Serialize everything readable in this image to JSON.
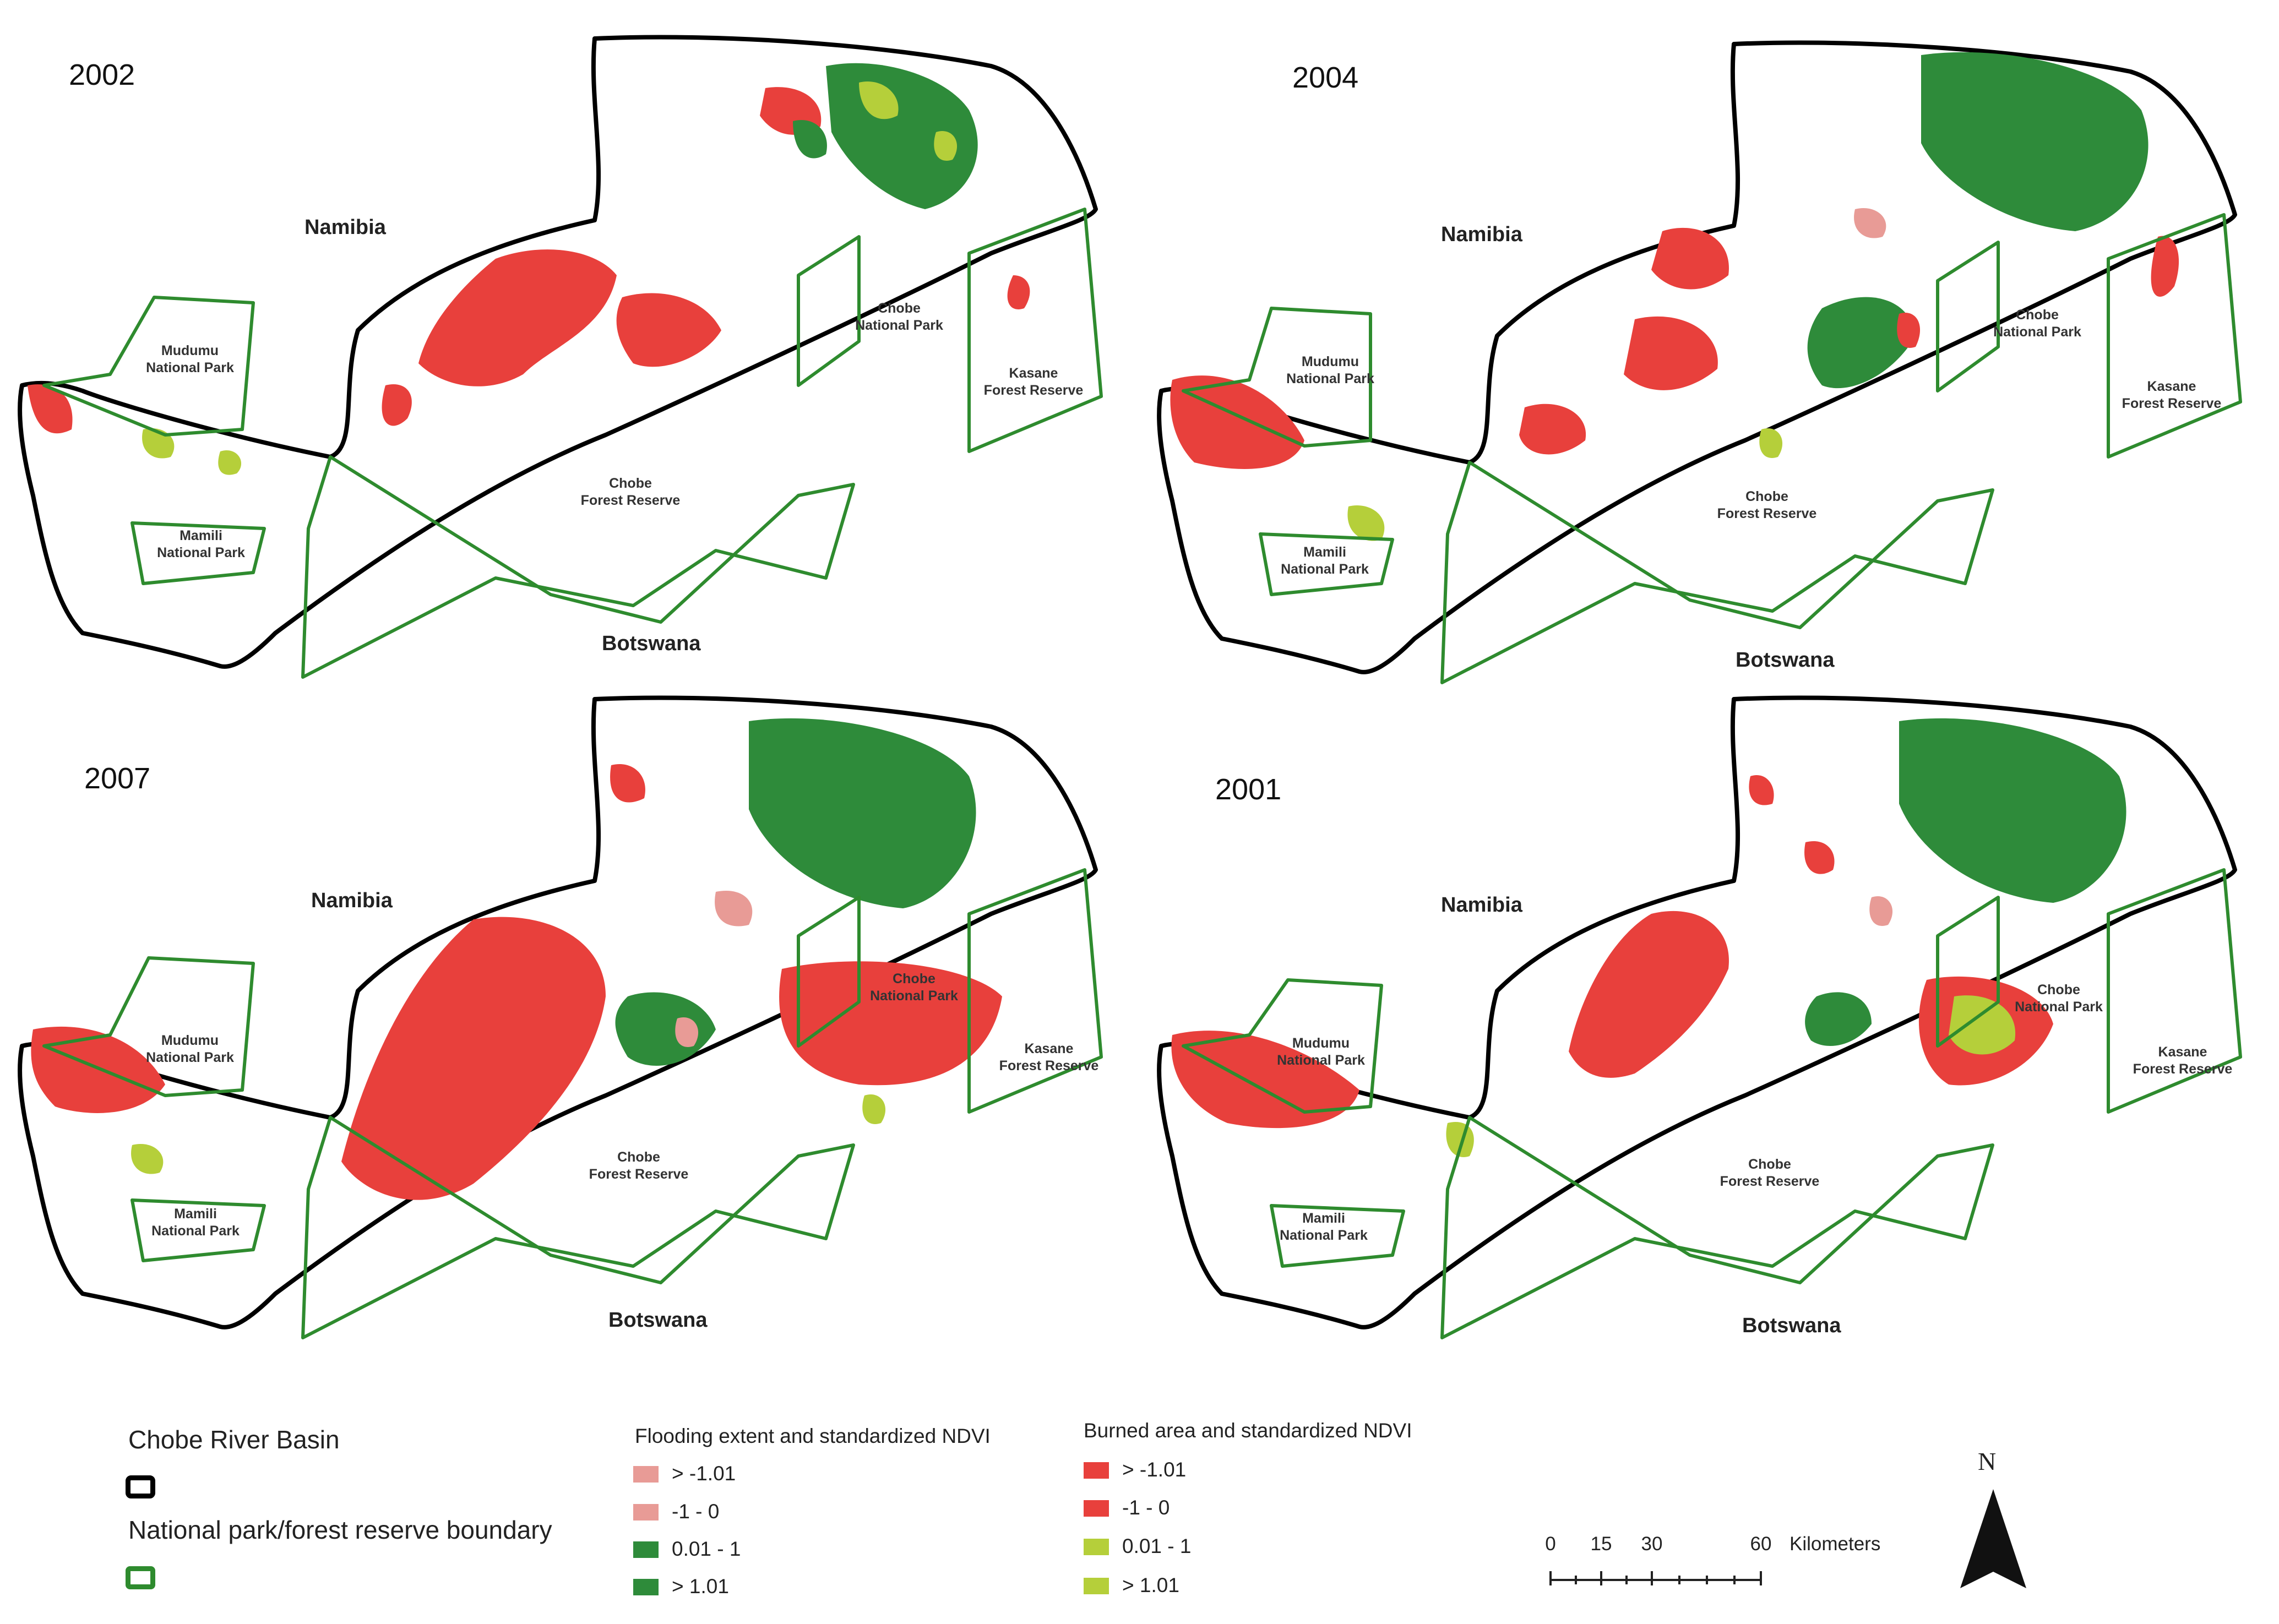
{
  "map": {
    "panels": [
      {
        "year": "2002",
        "countries": {
          "north": "Namibia",
          "south": "Botswana"
        }
      },
      {
        "year": "2004",
        "countries": {
          "north": "Namibia",
          "south": "Botswana"
        }
      },
      {
        "year": "2007",
        "countries": {
          "north": "Namibia",
          "south": "Botswana"
        }
      },
      {
        "year": "2001",
        "countries": {
          "north": "Namibia",
          "south": "Botswana"
        }
      }
    ],
    "parks": {
      "mudumu": [
        "Mudumu",
        "National Park"
      ],
      "mamili": [
        "Mamili",
        "National Park"
      ],
      "chobe_np": [
        "Chobe",
        "National Park"
      ],
      "chobe_fr": [
        "Chobe",
        "Forest Reserve"
      ],
      "kasane": [
        "Kasane",
        "Forest Reserve"
      ]
    }
  },
  "legend": {
    "basin": "Chobe River Basin",
    "boundary": "National park/forest reserve boundary",
    "flooding_title": "Flooding extent and standardized NDVI",
    "burned_title": "Burned area and standardized NDVI",
    "flooding_items": [
      {
        "label": "> -1.01",
        "color": "#e89b96"
      },
      {
        "label": "-1 - 0",
        "color": "#e89b96"
      },
      {
        "label": "0.01 - 1",
        "color": "#2e8b3a"
      },
      {
        "label": "> 1.01",
        "color": "#2e8b3a"
      }
    ],
    "burned_items": [
      {
        "label": "> -1.01",
        "color": "#e8403c"
      },
      {
        "label": "-1 - 0",
        "color": "#e8403c"
      },
      {
        "label": "0.01 - 1",
        "color": "#b5cf3a"
      },
      {
        "label": "> 1.01",
        "color": "#b5cf3a"
      }
    ]
  },
  "scale_bar": {
    "ticks": [
      "0",
      "15",
      "30",
      "60"
    ],
    "unit": "Kilometers"
  },
  "north_arrow": {
    "label": "N"
  },
  "colors": {
    "basin": "#000000",
    "boundary": "#2e8b2e",
    "burn": "#e8403c",
    "flood_neg": "#e89b96",
    "ndvi_pos": "#2e8b3a",
    "burn_pos": "#b5cf3a"
  }
}
